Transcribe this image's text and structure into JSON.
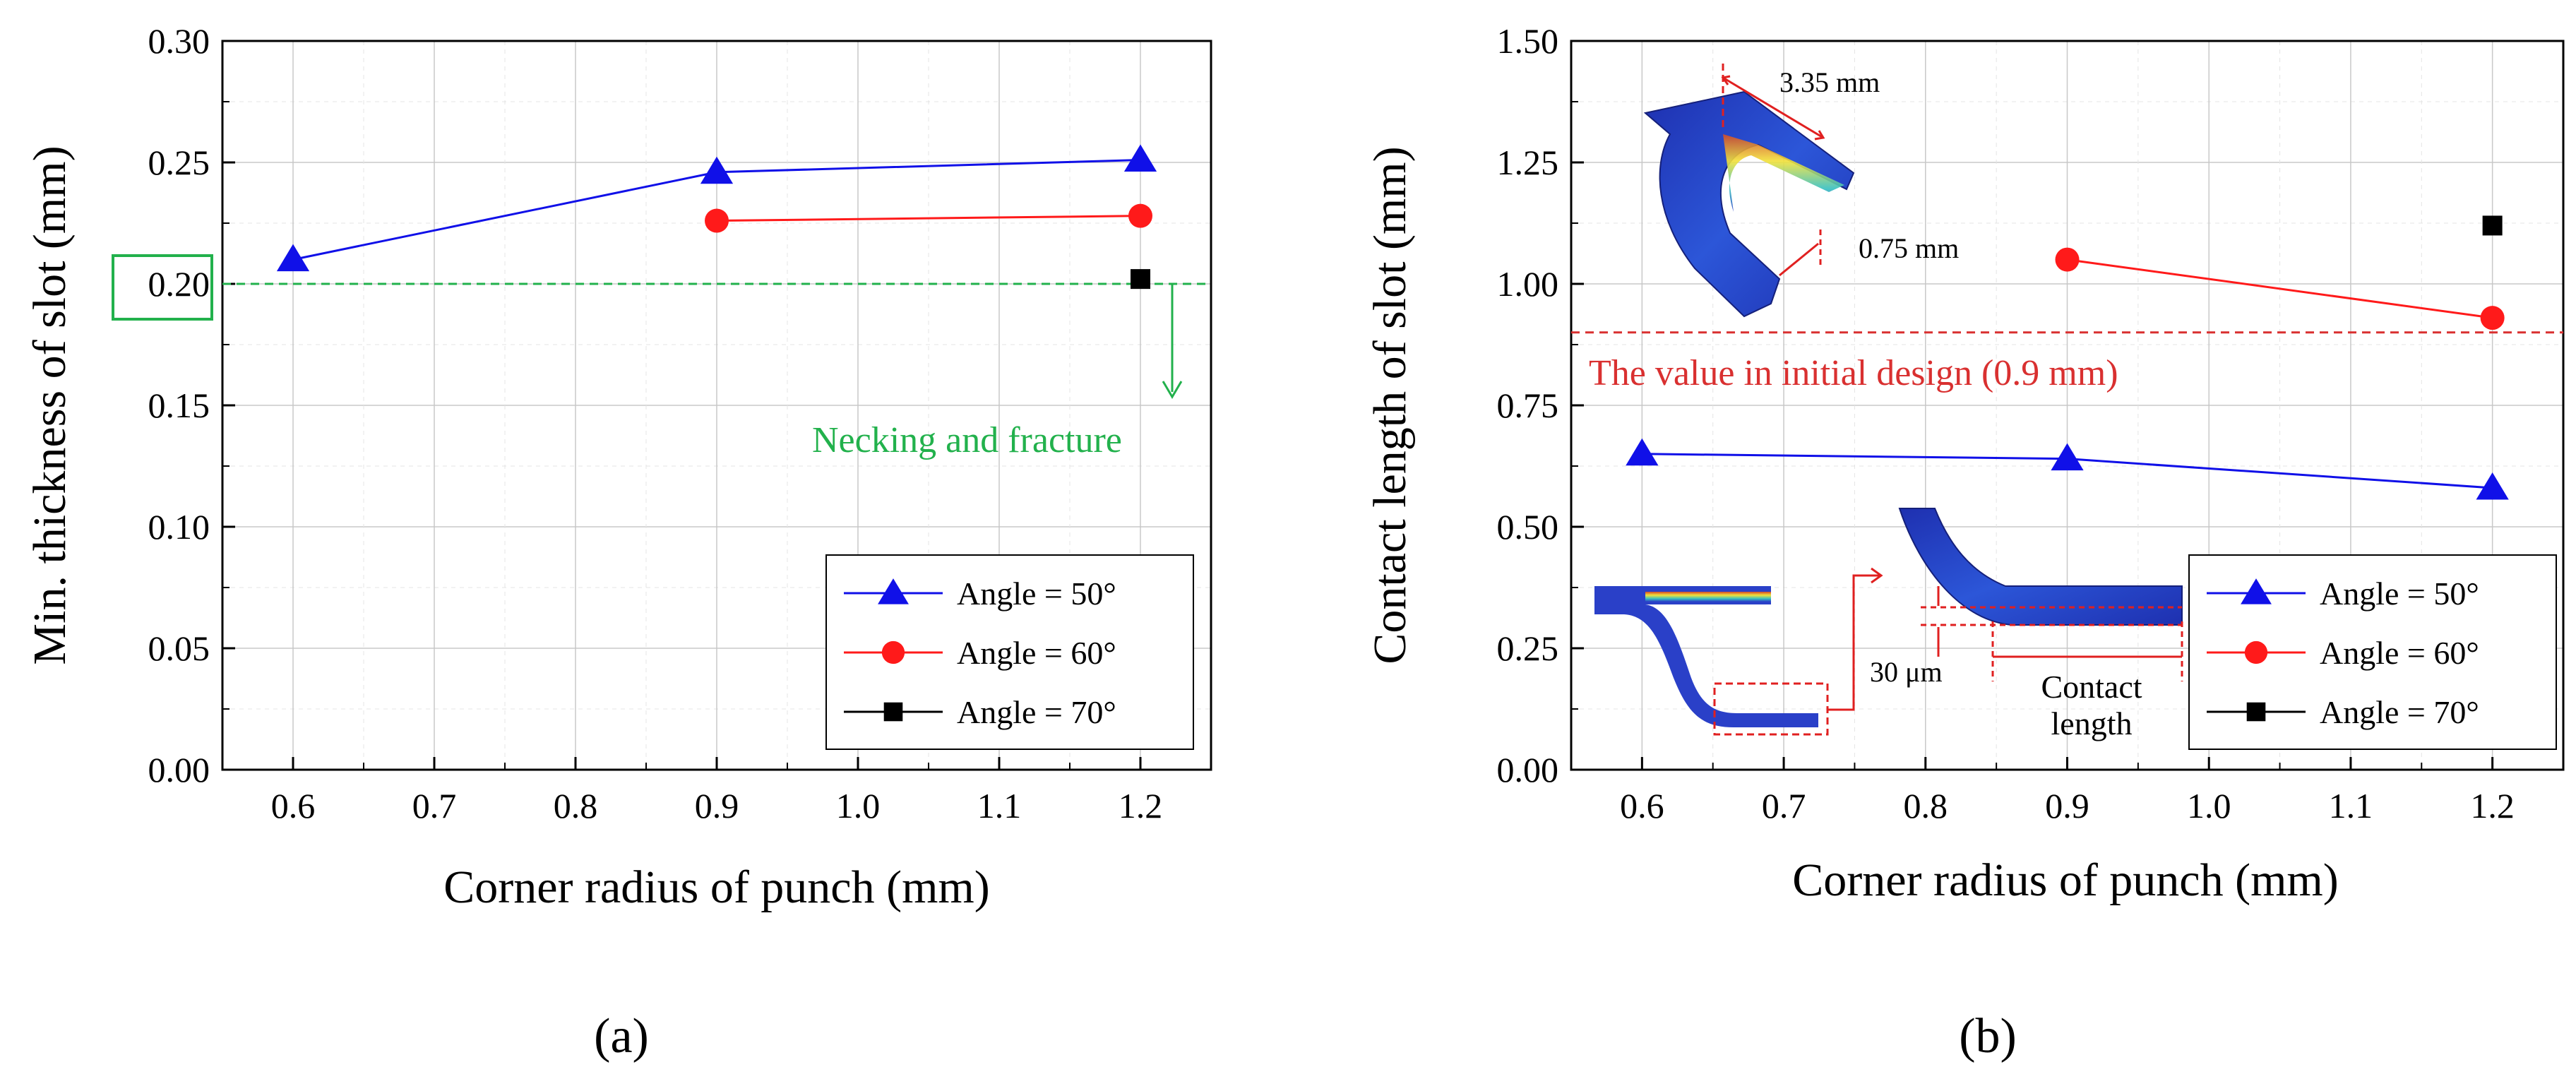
{
  "colors": {
    "angle50": "#1010e8",
    "angle60": "#ff1a1a",
    "angle70": "#000000",
    "necking": "#22b14c",
    "design": "#d93030",
    "fem_blue": "#2a40c8"
  },
  "chart_data": [
    {
      "type": "line",
      "panel_label": "(a)",
      "xlabel": "Corner radius of punch (mm)",
      "ylabel": "Min. thickness of slot (mm)",
      "xlim": [
        0.55,
        1.25
      ],
      "ylim": [
        0.0,
        0.3
      ],
      "xticks": [
        "0.6",
        "0.7",
        "0.8",
        "0.9",
        "1.0",
        "1.1",
        "1.2"
      ],
      "yticks": [
        "0.00",
        "0.05",
        "0.10",
        "0.15",
        "0.20",
        "0.25",
        "0.30"
      ],
      "grid": true,
      "legend_position": "bottom-right",
      "series": [
        {
          "name": "Angle = 50°",
          "marker": "triangle",
          "x": [
            0.6,
            0.9,
            1.2
          ],
          "y": [
            0.21,
            0.246,
            0.251
          ]
        },
        {
          "name": "Angle = 60°",
          "marker": "circle",
          "x": [
            0.9,
            1.2
          ],
          "y": [
            0.226,
            0.228
          ]
        },
        {
          "name": "Angle = 70°",
          "marker": "square",
          "x": [
            1.2
          ],
          "y": [
            0.202
          ]
        }
      ],
      "reference_line": {
        "y": 0.2,
        "style": "dashed",
        "highlighted_tick": "0.20"
      },
      "annotations": {
        "necking": "Necking and fracture"
      }
    },
    {
      "type": "line",
      "panel_label": "(b)",
      "xlabel": "Corner radius of punch (mm)",
      "ylabel": "Contact length of slot (mm)",
      "xlim": [
        0.55,
        1.25
      ],
      "ylim": [
        0.0,
        1.5
      ],
      "xticks": [
        "0.6",
        "0.7",
        "0.8",
        "0.9",
        "1.0",
        "1.1",
        "1.2"
      ],
      "yticks": [
        "0.00",
        "0.25",
        "0.50",
        "0.75",
        "1.00",
        "1.25",
        "1.50"
      ],
      "grid": true,
      "legend_position": "bottom-right",
      "series": [
        {
          "name": "Angle = 50°",
          "marker": "triangle",
          "x": [
            0.6,
            0.9,
            1.2
          ],
          "y": [
            0.65,
            0.64,
            0.58
          ]
        },
        {
          "name": "Angle = 60°",
          "marker": "circle",
          "x": [
            0.9,
            1.2
          ],
          "y": [
            1.05,
            0.93
          ]
        },
        {
          "name": "Angle = 70°",
          "marker": "square",
          "x": [
            1.2
          ],
          "y": [
            1.12
          ]
        }
      ],
      "reference_line": {
        "y": 0.9,
        "style": "dashed",
        "label": "The value in initial design (0.9 mm)"
      },
      "annotations": {
        "dim_top": "3.35 mm",
        "dim_side": "0.75 mm",
        "dim_gap": "30 μm",
        "contact_line1": "Contact",
        "contact_line2": "length"
      }
    }
  ]
}
